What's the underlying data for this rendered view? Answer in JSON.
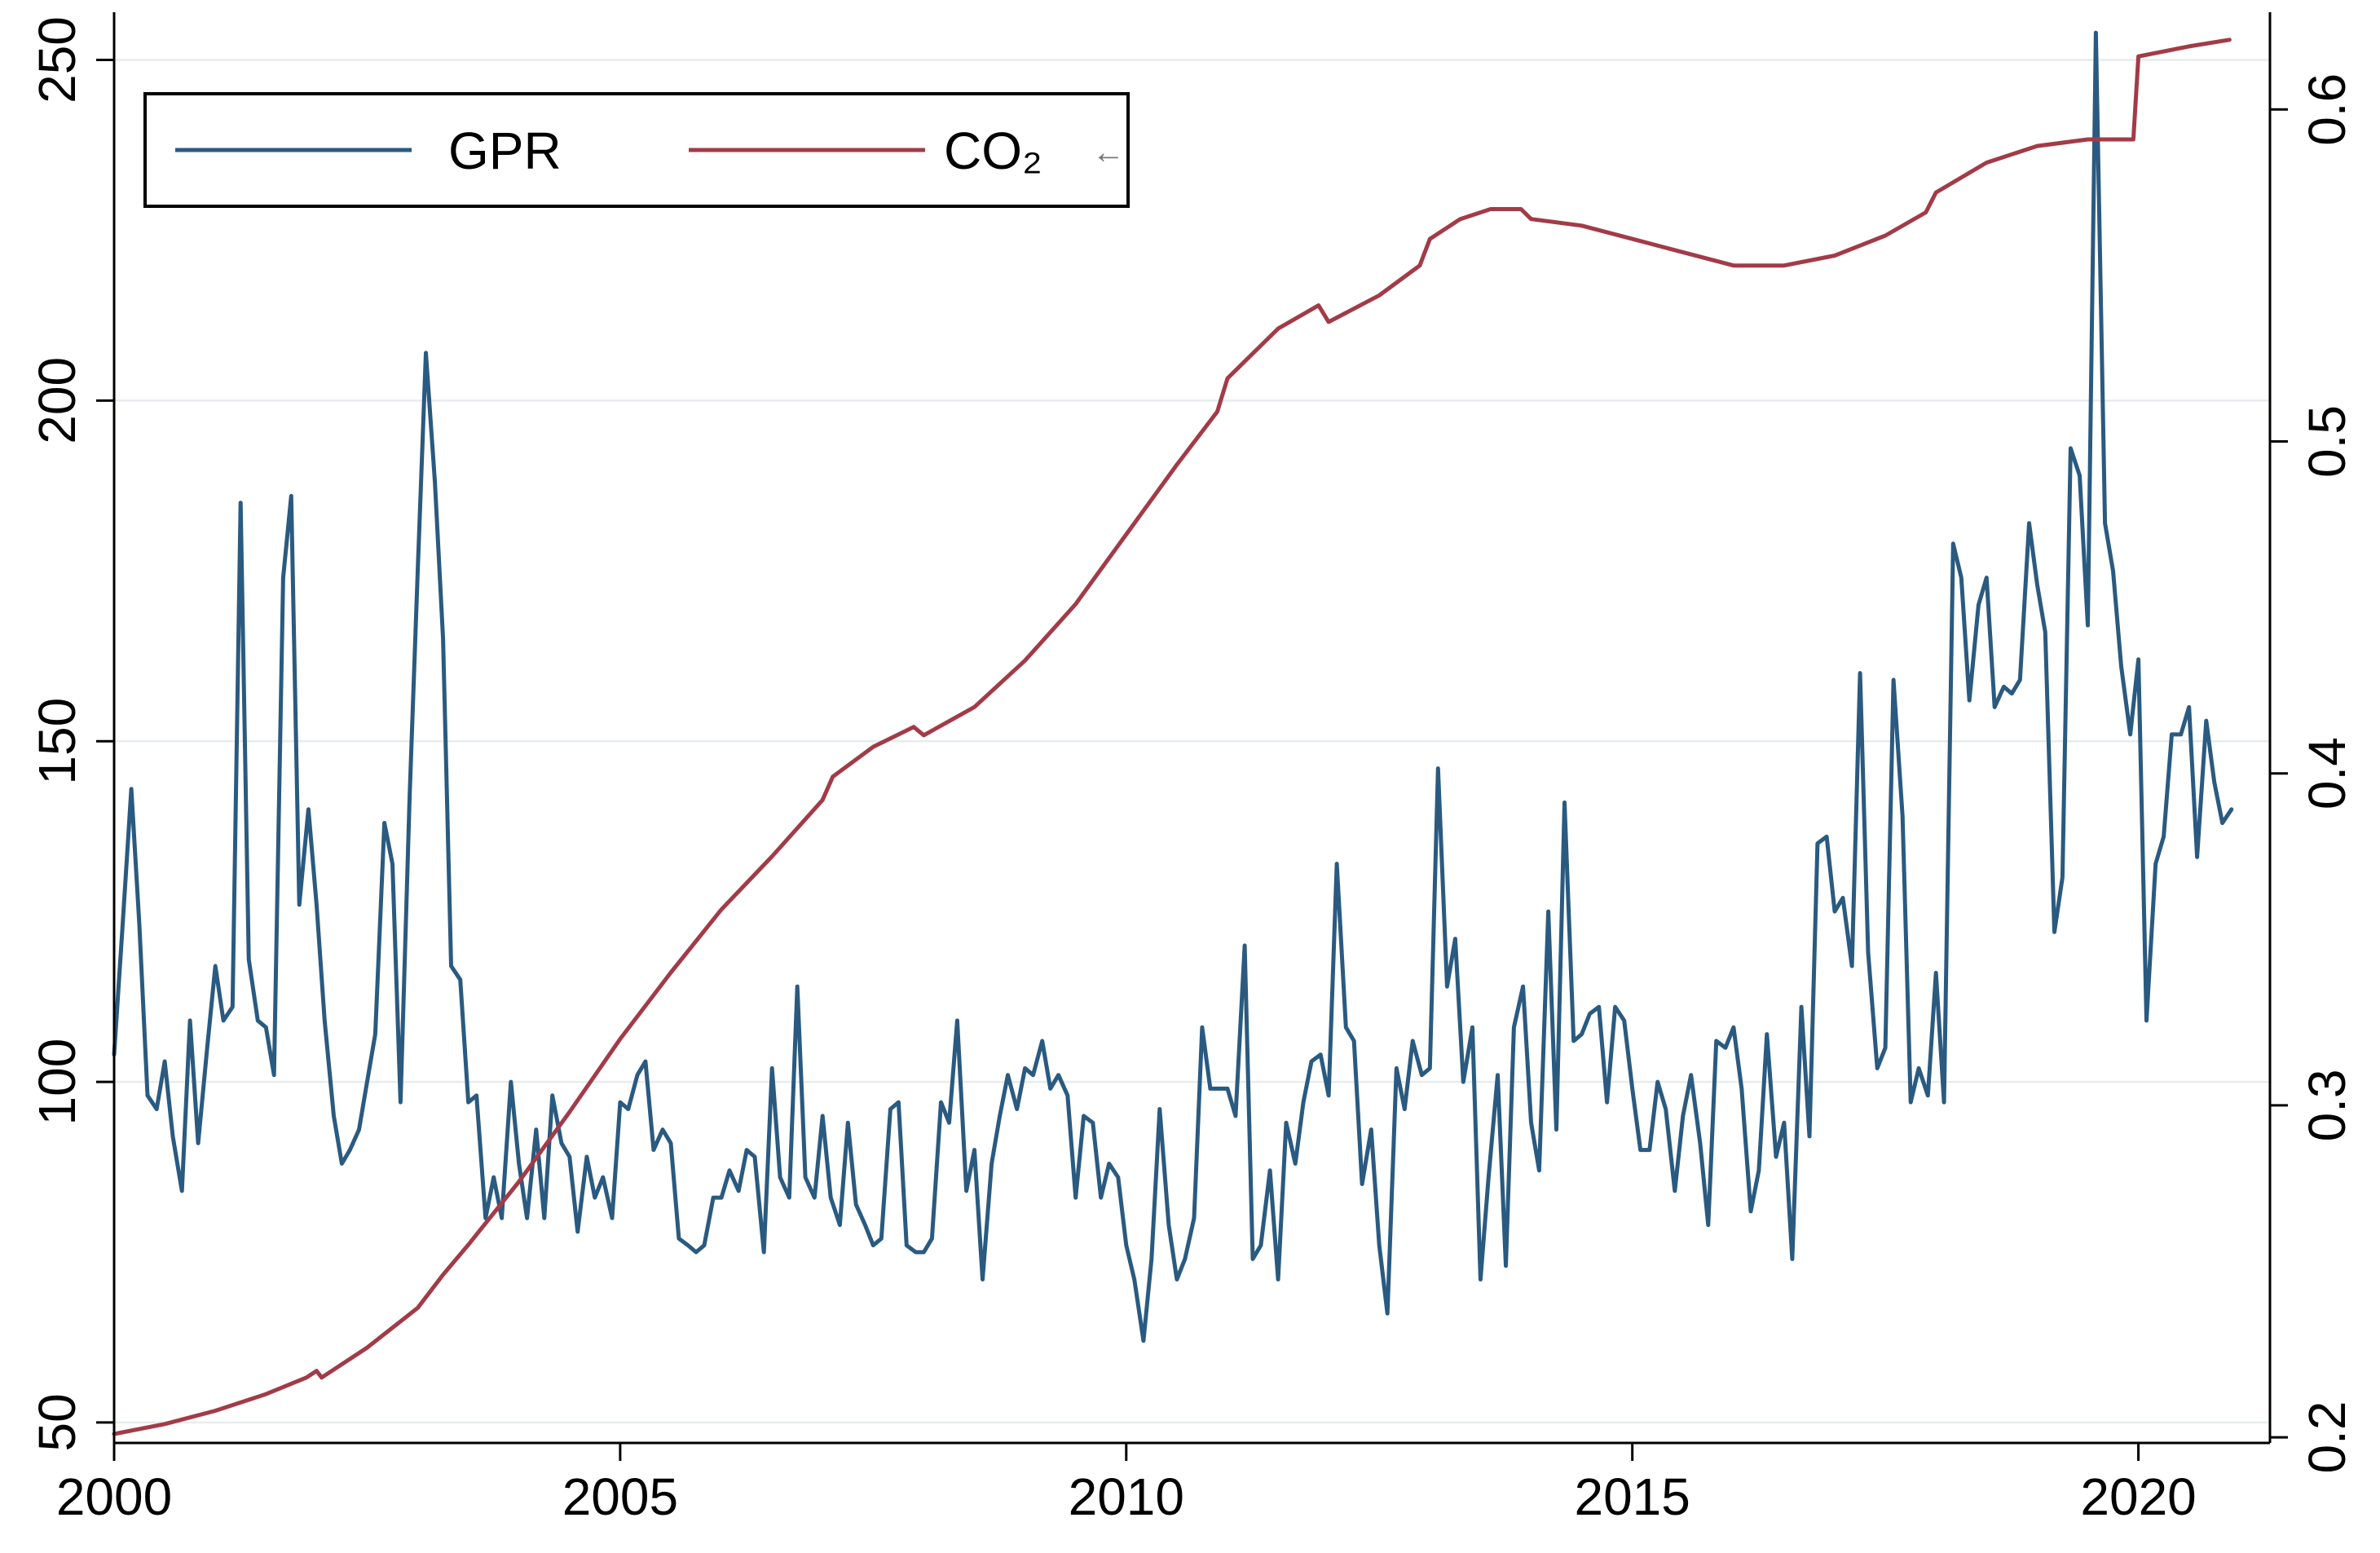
{
  "chart_data": {
    "type": "line",
    "title": "",
    "xlabel": "",
    "ylabel": "",
    "x_ticks": [
      "2000",
      "2005",
      "2010",
      "2015",
      "2020"
    ],
    "y_left_ticks": [
      "50",
      "100",
      "150",
      "200",
      "250"
    ],
    "y_right_ticks": [
      "0.2",
      "0.3",
      "0.4",
      "0.5",
      "0.6"
    ],
    "xlim": [
      2000,
      2021.3
    ],
    "ylim_left": [
      47,
      257
    ],
    "ylim_right": [
      0.1983,
      0.6293
    ],
    "legend": {
      "position": "top-left",
      "labels": [
        "GPR",
        "CO₂"
      ],
      "marker": "←"
    },
    "series": [
      {
        "name": "GPR",
        "axis": "left",
        "color": "#2a5a80",
        "points": [
          [
            2000.0,
            104
          ],
          [
            2000.08,
            122
          ],
          [
            2000.17,
            143
          ],
          [
            2000.25,
            123
          ],
          [
            2000.33,
            98
          ],
          [
            2000.42,
            96
          ],
          [
            2000.5,
            103
          ],
          [
            2000.58,
            92
          ],
          [
            2000.67,
            84
          ],
          [
            2000.75,
            109
          ],
          [
            2000.83,
            91
          ],
          [
            2000.92,
            105
          ],
          [
            2001.0,
            117
          ],
          [
            2001.08,
            109
          ],
          [
            2001.17,
            111
          ],
          [
            2001.25,
            185
          ],
          [
            2001.33,
            118
          ],
          [
            2001.42,
            109
          ],
          [
            2001.5,
            108
          ],
          [
            2001.58,
            101
          ],
          [
            2001.67,
            174
          ],
          [
            2001.75,
            186
          ],
          [
            2001.83,
            126
          ],
          [
            2001.92,
            140
          ],
          [
            2002.0,
            126
          ],
          [
            2002.08,
            109
          ],
          [
            2002.17,
            95
          ],
          [
            2002.25,
            88
          ],
          [
            2002.33,
            90
          ],
          [
            2002.42,
            93
          ],
          [
            2002.5,
            100
          ],
          [
            2002.58,
            107
          ],
          [
            2002.67,
            138
          ],
          [
            2002.75,
            132
          ],
          [
            2002.83,
            97
          ],
          [
            2002.92,
            142
          ],
          [
            2003.0,
            175
          ],
          [
            2003.08,
            207
          ],
          [
            2003.17,
            188
          ],
          [
            2003.25,
            165
          ],
          [
            2003.33,
            117
          ],
          [
            2003.42,
            115
          ],
          [
            2003.5,
            97
          ],
          [
            2003.58,
            98
          ],
          [
            2003.67,
            80
          ],
          [
            2003.75,
            86
          ],
          [
            2003.83,
            80
          ],
          [
            2003.92,
            100
          ],
          [
            2004.0,
            88
          ],
          [
            2004.08,
            80
          ],
          [
            2004.17,
            93
          ],
          [
            2004.25,
            80
          ],
          [
            2004.33,
            98
          ],
          [
            2004.42,
            91
          ],
          [
            2004.5,
            89
          ],
          [
            2004.58,
            78
          ],
          [
            2004.67,
            89
          ],
          [
            2004.75,
            83
          ],
          [
            2004.83,
            86
          ],
          [
            2004.92,
            80
          ],
          [
            2005.0,
            97
          ],
          [
            2005.08,
            96
          ],
          [
            2005.17,
            101
          ],
          [
            2005.25,
            103
          ],
          [
            2005.33,
            90
          ],
          [
            2005.42,
            93
          ],
          [
            2005.5,
            91
          ],
          [
            2005.58,
            77
          ],
          [
            2005.67,
            76
          ],
          [
            2005.75,
            75
          ],
          [
            2005.83,
            76
          ],
          [
            2005.92,
            83
          ],
          [
            2006.0,
            83
          ],
          [
            2006.08,
            87
          ],
          [
            2006.17,
            84
          ],
          [
            2006.25,
            90
          ],
          [
            2006.33,
            89
          ],
          [
            2006.42,
            75
          ],
          [
            2006.5,
            102
          ],
          [
            2006.58,
            86
          ],
          [
            2006.67,
            83
          ],
          [
            2006.75,
            114
          ],
          [
            2006.83,
            86
          ],
          [
            2006.92,
            83
          ],
          [
            2007.0,
            95
          ],
          [
            2007.08,
            83
          ],
          [
            2007.17,
            79
          ],
          [
            2007.25,
            94
          ],
          [
            2007.33,
            82
          ],
          [
            2007.42,
            79
          ],
          [
            2007.5,
            76
          ],
          [
            2007.58,
            77
          ],
          [
            2007.67,
            96
          ],
          [
            2007.75,
            97
          ],
          [
            2007.83,
            76
          ],
          [
            2007.92,
            75
          ],
          [
            2008.0,
            75
          ],
          [
            2008.08,
            77
          ],
          [
            2008.17,
            97
          ],
          [
            2008.25,
            94
          ],
          [
            2008.33,
            109
          ],
          [
            2008.42,
            84
          ],
          [
            2008.5,
            90
          ],
          [
            2008.58,
            71
          ],
          [
            2008.67,
            88
          ],
          [
            2008.75,
            95
          ],
          [
            2008.83,
            101
          ],
          [
            2008.92,
            96
          ],
          [
            2009.0,
            102
          ],
          [
            2009.08,
            101
          ],
          [
            2009.17,
            106
          ],
          [
            2009.25,
            99
          ],
          [
            2009.33,
            101
          ],
          [
            2009.42,
            98
          ],
          [
            2009.5,
            83
          ],
          [
            2009.58,
            95
          ],
          [
            2009.67,
            94
          ],
          [
            2009.75,
            83
          ],
          [
            2009.83,
            88
          ],
          [
            2009.92,
            86
          ],
          [
            2010.0,
            76
          ],
          [
            2010.08,
            71
          ],
          [
            2010.17,
            62
          ],
          [
            2010.25,
            74
          ],
          [
            2010.33,
            96
          ],
          [
            2010.42,
            79
          ],
          [
            2010.5,
            71
          ],
          [
            2010.58,
            74
          ],
          [
            2010.67,
            80
          ],
          [
            2010.75,
            108
          ],
          [
            2010.83,
            99
          ],
          [
            2010.92,
            99
          ],
          [
            2011.0,
            99
          ],
          [
            2011.08,
            95
          ],
          [
            2011.17,
            120
          ],
          [
            2011.25,
            74
          ],
          [
            2011.33,
            76
          ],
          [
            2011.42,
            87
          ],
          [
            2011.5,
            71
          ],
          [
            2011.58,
            94
          ],
          [
            2011.67,
            88
          ],
          [
            2011.75,
            97
          ],
          [
            2011.83,
            103
          ],
          [
            2011.92,
            104
          ],
          [
            2012.0,
            98
          ],
          [
            2012.08,
            132
          ],
          [
            2012.17,
            108
          ],
          [
            2012.25,
            106
          ],
          [
            2012.33,
            85
          ],
          [
            2012.42,
            93
          ],
          [
            2012.5,
            76
          ],
          [
            2012.58,
            66
          ],
          [
            2012.67,
            102
          ],
          [
            2012.75,
            96
          ],
          [
            2012.83,
            106
          ],
          [
            2012.92,
            101
          ],
          [
            2013.0,
            102
          ],
          [
            2013.08,
            146
          ],
          [
            2013.17,
            114
          ],
          [
            2013.25,
            121
          ],
          [
            2013.33,
            100
          ],
          [
            2013.42,
            108
          ],
          [
            2013.5,
            71
          ],
          [
            2013.58,
            86
          ],
          [
            2013.67,
            101
          ],
          [
            2013.75,
            73
          ],
          [
            2013.83,
            108
          ],
          [
            2013.92,
            114
          ],
          [
            2014.0,
            94
          ],
          [
            2014.08,
            87
          ],
          [
            2014.17,
            125
          ],
          [
            2014.25,
            93
          ],
          [
            2014.33,
            141
          ],
          [
            2014.42,
            106
          ],
          [
            2014.5,
            107
          ],
          [
            2014.58,
            110
          ],
          [
            2014.67,
            111
          ],
          [
            2014.75,
            97
          ],
          [
            2014.83,
            111
          ],
          [
            2014.92,
            109
          ],
          [
            2015.0,
            99
          ],
          [
            2015.08,
            90
          ],
          [
            2015.17,
            90
          ],
          [
            2015.25,
            100
          ],
          [
            2015.33,
            96
          ],
          [
            2015.42,
            84
          ],
          [
            2015.5,
            95
          ],
          [
            2015.58,
            101
          ],
          [
            2015.67,
            91
          ],
          [
            2015.75,
            79
          ],
          [
            2015.83,
            106
          ],
          [
            2015.92,
            105
          ],
          [
            2016.0,
            108
          ],
          [
            2016.08,
            99
          ],
          [
            2016.17,
            81
          ],
          [
            2016.25,
            87
          ],
          [
            2016.33,
            107
          ],
          [
            2016.42,
            89
          ],
          [
            2016.5,
            94
          ],
          [
            2016.58,
            74
          ],
          [
            2016.67,
            111
          ],
          [
            2016.75,
            92
          ],
          [
            2016.83,
            135
          ],
          [
            2016.92,
            136
          ],
          [
            2017.0,
            125
          ],
          [
            2017.08,
            127
          ],
          [
            2017.17,
            117
          ],
          [
            2017.25,
            160
          ],
          [
            2017.33,
            119
          ],
          [
            2017.42,
            102
          ],
          [
            2017.5,
            105
          ],
          [
            2017.58,
            159
          ],
          [
            2017.67,
            139
          ],
          [
            2017.75,
            97
          ],
          [
            2017.83,
            102
          ],
          [
            2017.92,
            98
          ],
          [
            2018.0,
            116
          ],
          [
            2018.08,
            97
          ],
          [
            2018.17,
            179
          ],
          [
            2018.25,
            174
          ],
          [
            2018.33,
            156
          ],
          [
            2018.42,
            170
          ],
          [
            2018.5,
            174
          ],
          [
            2018.58,
            155
          ],
          [
            2018.67,
            158
          ],
          [
            2018.75,
            157
          ],
          [
            2018.83,
            159
          ],
          [
            2018.92,
            182
          ],
          [
            2019.0,
            173
          ],
          [
            2019.08,
            166
          ],
          [
            2019.17,
            122
          ],
          [
            2019.25,
            130
          ],
          [
            2019.33,
            193
          ],
          [
            2019.42,
            189
          ],
          [
            2019.5,
            167
          ],
          [
            2019.58,
            254
          ],
          [
            2019.67,
            182
          ],
          [
            2019.75,
            175
          ],
          [
            2019.83,
            161
          ],
          [
            2019.92,
            151
          ],
          [
            2020.0,
            162
          ],
          [
            2020.08,
            109
          ],
          [
            2020.17,
            132
          ],
          [
            2020.25,
            136
          ],
          [
            2020.33,
            151
          ],
          [
            2020.42,
            151
          ],
          [
            2020.5,
            155
          ],
          [
            2020.58,
            133
          ],
          [
            2020.67,
            153
          ],
          [
            2020.75,
            144
          ],
          [
            2020.83,
            138
          ],
          [
            2020.92,
            140
          ]
        ]
      },
      {
        "name": "CO₂",
        "axis": "right",
        "color": "#a23b48",
        "points": [
          [
            2000.0,
            0.201
          ],
          [
            2000.5,
            0.204
          ],
          [
            2001.0,
            0.208
          ],
          [
            2001.5,
            0.213
          ],
          [
            2001.9,
            0.218
          ],
          [
            2002.0,
            0.22
          ],
          [
            2002.05,
            0.218
          ],
          [
            2002.5,
            0.227
          ],
          [
            2003.0,
            0.239
          ],
          [
            2003.25,
            0.249
          ],
          [
            2003.5,
            0.258
          ],
          [
            2004.0,
            0.277
          ],
          [
            2004.5,
            0.298
          ],
          [
            2005.0,
            0.32
          ],
          [
            2005.5,
            0.34
          ],
          [
            2006.0,
            0.359
          ],
          [
            2006.5,
            0.375
          ],
          [
            2007.0,
            0.392
          ],
          [
            2007.1,
            0.399
          ],
          [
            2007.5,
            0.408
          ],
          [
            2007.9,
            0.414
          ],
          [
            2008.0,
            0.4115
          ],
          [
            2008.5,
            0.42
          ],
          [
            2009.0,
            0.434
          ],
          [
            2009.5,
            0.451
          ],
          [
            2010.0,
            0.472
          ],
          [
            2010.5,
            0.493
          ],
          [
            2010.9,
            0.509
          ],
          [
            2011.0,
            0.519
          ],
          [
            2011.5,
            0.534
          ],
          [
            2011.9,
            0.541
          ],
          [
            2012.0,
            0.536
          ],
          [
            2012.5,
            0.544
          ],
          [
            2012.9,
            0.553
          ],
          [
            2013.0,
            0.561
          ],
          [
            2013.3,
            0.567
          ],
          [
            2013.6,
            0.57
          ],
          [
            2013.9,
            0.57
          ],
          [
            2014.0,
            0.567
          ],
          [
            2014.5,
            0.565
          ],
          [
            2015.0,
            0.561
          ],
          [
            2015.5,
            0.557
          ],
          [
            2016.0,
            0.553
          ],
          [
            2016.5,
            0.553
          ],
          [
            2017.0,
            0.556
          ],
          [
            2017.5,
            0.562
          ],
          [
            2017.9,
            0.569
          ],
          [
            2018.0,
            0.575
          ],
          [
            2018.5,
            0.584
          ],
          [
            2019.0,
            0.589
          ],
          [
            2019.5,
            0.591
          ],
          [
            2019.95,
            0.591
          ],
          [
            2020.0,
            0.616
          ],
          [
            2020.5,
            0.619
          ],
          [
            2020.9,
            0.621
          ]
        ]
      }
    ]
  }
}
